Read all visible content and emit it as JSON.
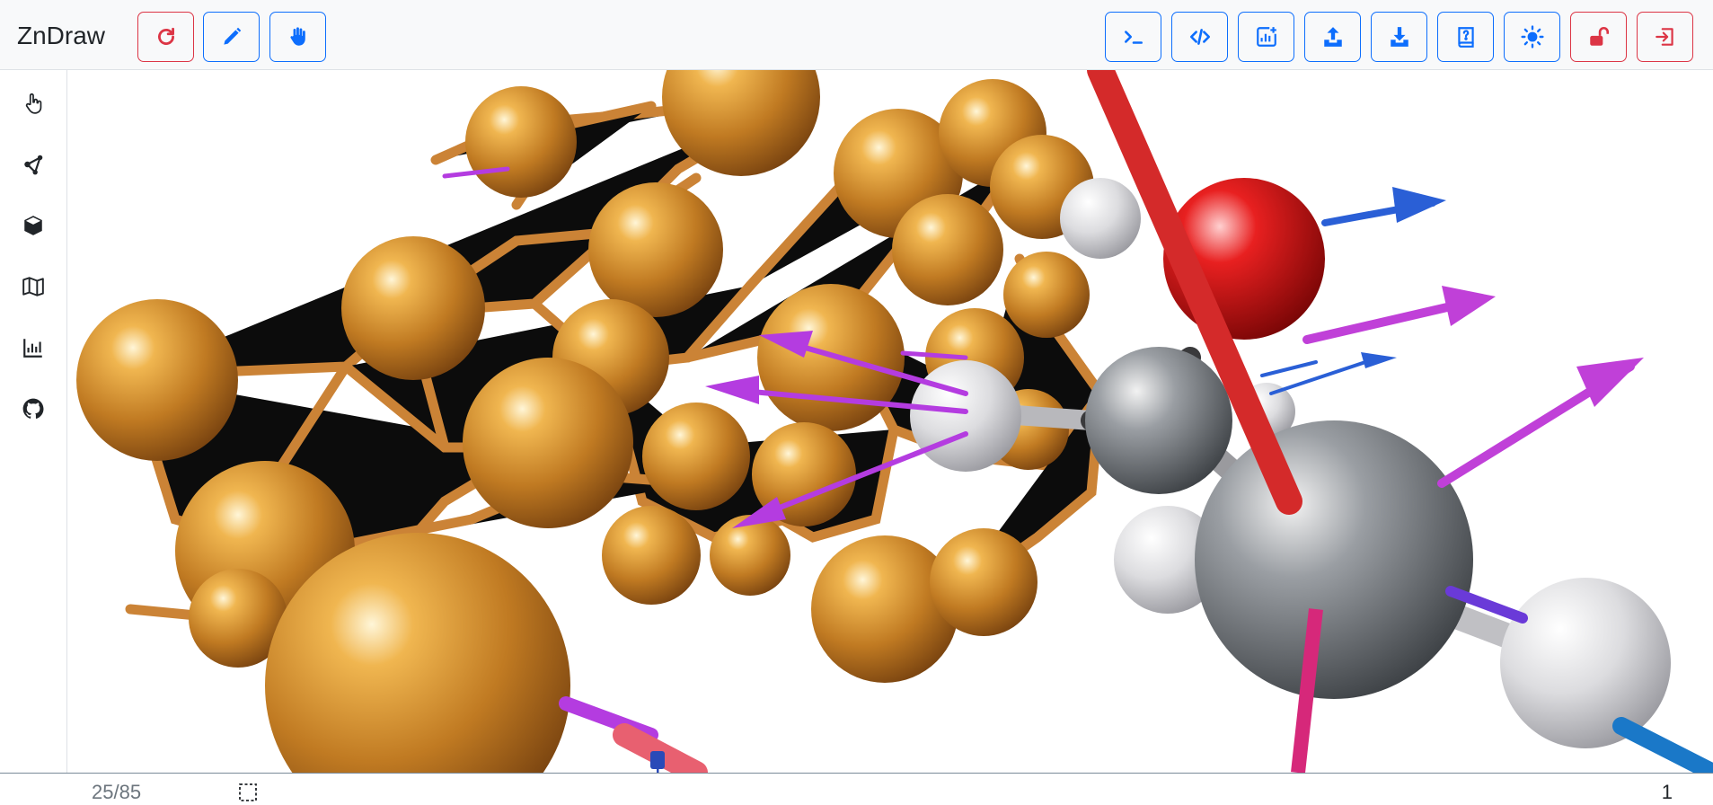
{
  "app": {
    "title": "ZnDraw"
  },
  "toolbar": {
    "left_buttons": [
      {
        "name": "refresh",
        "icon": "refresh-icon",
        "variant": "danger"
      },
      {
        "name": "drawing-mode",
        "icon": "pencil-icon",
        "variant": "primary"
      },
      {
        "name": "interaction-mode",
        "icon": "hand-icon",
        "variant": "primary"
      }
    ],
    "right_buttons": [
      {
        "name": "console",
        "icon": "terminal-icon",
        "variant": "primary"
      },
      {
        "name": "code",
        "icon": "code-icon",
        "variant": "primary"
      },
      {
        "name": "add-plot",
        "icon": "add-plot-icon",
        "variant": "primary"
      },
      {
        "name": "upload",
        "icon": "upload-icon",
        "variant": "primary"
      },
      {
        "name": "download",
        "icon": "download-icon",
        "variant": "primary"
      },
      {
        "name": "help",
        "icon": "help-book-icon",
        "variant": "primary"
      },
      {
        "name": "theme",
        "icon": "sun-icon",
        "variant": "primary"
      },
      {
        "name": "lock",
        "icon": "unlock-icon",
        "variant": "danger"
      },
      {
        "name": "logout",
        "icon": "exit-icon",
        "variant": "danger"
      }
    ]
  },
  "sidebar": {
    "items": [
      {
        "name": "selection",
        "icon": "pointer-hand-icon"
      },
      {
        "name": "interaction",
        "icon": "nodes-icon"
      },
      {
        "name": "scene",
        "icon": "cube-icon"
      },
      {
        "name": "geometry",
        "icon": "map-icon"
      },
      {
        "name": "analysis",
        "icon": "bar-chart-icon"
      },
      {
        "name": "github",
        "icon": "github-icon"
      }
    ]
  },
  "player": {
    "frame_counter": "25/85",
    "current_frame": 25,
    "total_frames": 85,
    "step": "1"
  },
  "colors": {
    "primary": "#0d6efd",
    "danger": "#dc3545",
    "copper": "#c8832a",
    "oxygen": "#d01818",
    "carbon": "#8a8f94",
    "hydrogen": "#e8e8ea",
    "arrow_purple": "#b43ce0",
    "arrow_blue": "#2a5fd6"
  }
}
